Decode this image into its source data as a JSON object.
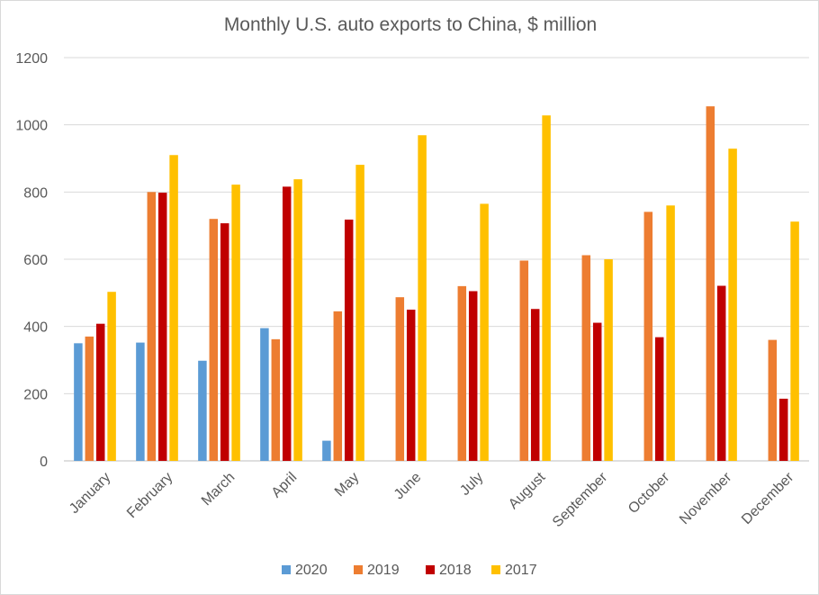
{
  "chart_data": {
    "type": "bar",
    "title": "Monthly U.S. auto exports to China, $ million",
    "categories": [
      "January",
      "February",
      "March",
      "April",
      "May",
      "June",
      "July",
      "August",
      "September",
      "October",
      "November",
      "December"
    ],
    "series": [
      {
        "name": "2020",
        "color": "#5b9bd5",
        "values": [
          350,
          352,
          298,
          395,
          60,
          null,
          null,
          null,
          null,
          null,
          null,
          null
        ]
      },
      {
        "name": "2019",
        "color": "#ed7d31",
        "values": [
          370,
          800,
          720,
          362,
          445,
          487,
          520,
          596,
          612,
          741,
          1055,
          360
        ]
      },
      {
        "name": "2018",
        "color": "#c00000",
        "values": [
          408,
          798,
          707,
          816,
          718,
          450,
          505,
          452,
          411,
          368,
          521,
          185
        ]
      },
      {
        "name": "2017",
        "color": "#ffc000",
        "values": [
          503,
          910,
          822,
          838,
          881,
          969,
          765,
          1028,
          600,
          760,
          929,
          712
        ]
      }
    ],
    "ylim": [
      0,
      1200
    ],
    "yticks": [
      0,
      200,
      400,
      600,
      800,
      1000,
      1200
    ],
    "xlabel": "",
    "ylabel": "",
    "grid": true,
    "legend_position": "bottom"
  }
}
